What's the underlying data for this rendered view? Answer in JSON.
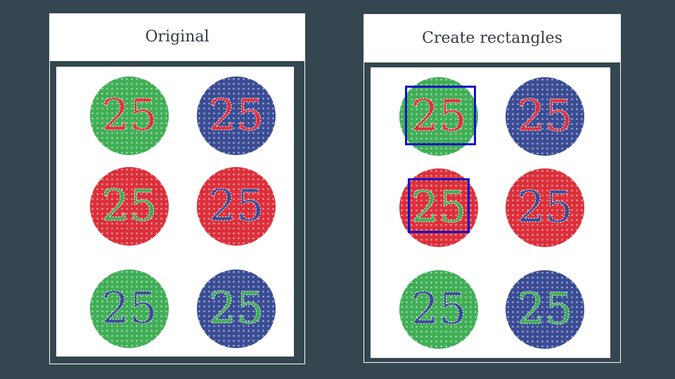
{
  "panels": [
    {
      "title": "Original",
      "plates": [
        {
          "bg": "#3fae55",
          "fg": "#e0303c",
          "text": "25"
        },
        {
          "bg": "#3a4c94",
          "fg": "#e0303c",
          "text": "25"
        },
        {
          "bg": "#dd2f3a",
          "fg": "#3fae55",
          "text": "25"
        },
        {
          "bg": "#dd2f3a",
          "fg": "#3a4c94",
          "text": "25"
        },
        {
          "bg": "#3fae55",
          "fg": "#3a4c94",
          "text": "25"
        },
        {
          "bg": "#3a4c94",
          "fg": "#3fae55",
          "text": "25"
        }
      ],
      "rectangles": []
    },
    {
      "title": "Create rectangles",
      "plates": [
        {
          "bg": "#3fae55",
          "fg": "#e0303c",
          "text": "25"
        },
        {
          "bg": "#3a4c94",
          "fg": "#e0303c",
          "text": "25"
        },
        {
          "bg": "#dd2f3a",
          "fg": "#3fae55",
          "text": "25"
        },
        {
          "bg": "#dd2f3a",
          "fg": "#3a4c94",
          "text": "25"
        },
        {
          "bg": "#3fae55",
          "fg": "#3a4c94",
          "text": "25"
        },
        {
          "bg": "#3a4c94",
          "fg": "#3fae55",
          "text": "25"
        }
      ],
      "rectangles": [
        {
          "plate": 0,
          "color": "#1010c8"
        },
        {
          "plate": 2,
          "color": "#1010c8"
        }
      ]
    }
  ]
}
